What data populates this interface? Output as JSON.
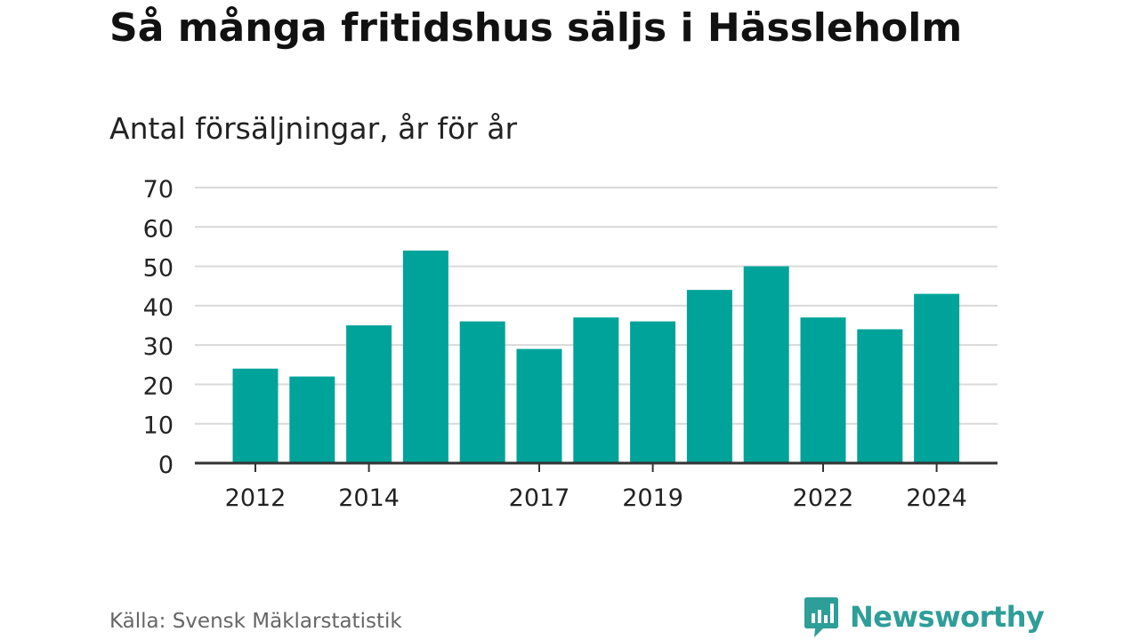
{
  "header": {
    "title": "Så många fritidshus säljs i Hässleholm",
    "subtitle": "Antal försäljningar, år för år"
  },
  "footer": {
    "source": "Källa: Svensk Mäklarstatistik",
    "brand": "Newsworthy"
  },
  "colors": {
    "bar": "#00a39a",
    "grid": "#d9d9d9",
    "axis": "#333333",
    "brand": "#2e9e98"
  },
  "icons": {
    "logo": "newsworthy-chart-bubble-icon"
  },
  "chart_data": {
    "type": "bar",
    "title": "Så många fritidshus säljs i Hässleholm",
    "subtitle": "Antal försäljningar, år för år",
    "categories": [
      "2012",
      "2013",
      "2014",
      "2015",
      "2016",
      "2017",
      "2018",
      "2019",
      "2020",
      "2021",
      "2022",
      "2023",
      "2024"
    ],
    "values": [
      24,
      22,
      35,
      54,
      36,
      29,
      37,
      36,
      44,
      50,
      37,
      34,
      43
    ],
    "x_tick_labels": [
      "2012",
      "2014",
      "2017",
      "2019",
      "2022",
      "2024"
    ],
    "y_ticks": [
      0,
      10,
      20,
      30,
      40,
      50,
      60,
      70
    ],
    "ylim": [
      0,
      70
    ],
    "xlabel": "",
    "ylabel": "",
    "grid": true,
    "legend": "none"
  }
}
